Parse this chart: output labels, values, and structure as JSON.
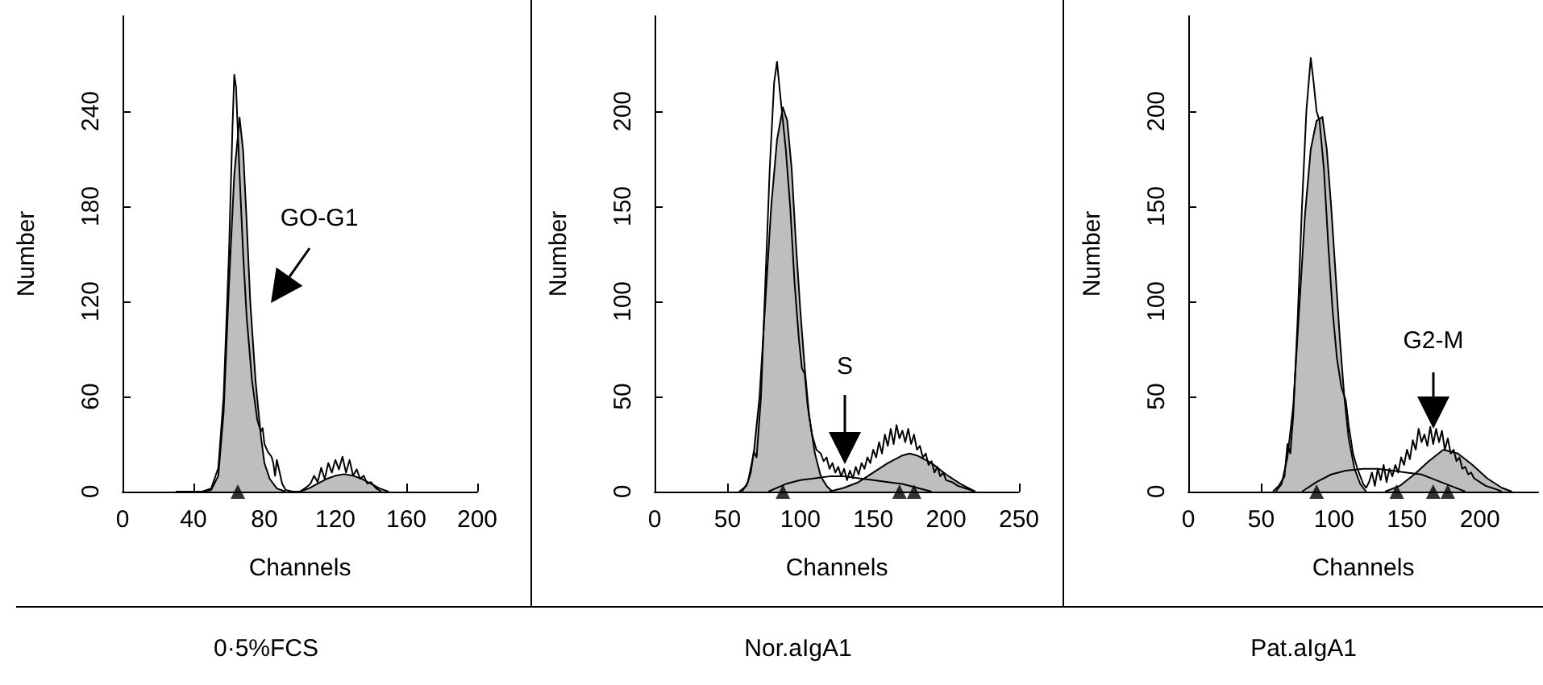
{
  "chart_data": [
    {
      "type": "line",
      "title": "0·5%FCS",
      "xlabel": "Channels",
      "ylabel": "Number",
      "xlim": [
        0,
        200
      ],
      "xticks": [
        0,
        40,
        80,
        120,
        160,
        200
      ],
      "ylim": [
        0,
        300
      ],
      "yticks": [
        0,
        60,
        120,
        180,
        240
      ],
      "series": [
        {
          "type": "area",
          "color": "#bcbec0",
          "x": [
            45,
            50,
            54,
            57,
            60,
            63,
            66,
            68,
            70,
            72,
            75,
            78,
            80,
            83,
            87,
            92
          ],
          "values": [
            0,
            1,
            10,
            50,
            130,
            200,
            236,
            215,
            170,
            120,
            70,
            35,
            18,
            8,
            2,
            0
          ]
        },
        {
          "type": "area",
          "color": "#bcbec0",
          "x": [
            100,
            105,
            110,
            115,
            120,
            125,
            130,
            135,
            140,
            145,
            150
          ],
          "values": [
            0,
            2,
            5,
            8,
            10,
            11,
            10,
            8,
            5,
            2,
            0
          ]
        },
        {
          "type": "line",
          "color": "#000000",
          "x": [
            30,
            45,
            50,
            54,
            57,
            60,
            62,
            63,
            64,
            66,
            68,
            70,
            73,
            76,
            78,
            79,
            80,
            82,
            84,
            85,
            86,
            87,
            88,
            90,
            92,
            96,
            100,
            104,
            106,
            108,
            110,
            112,
            114,
            116,
            118,
            120,
            122,
            124,
            126,
            128,
            130,
            132,
            134,
            136,
            138,
            140,
            143,
            146
          ],
          "values": [
            0,
            0,
            2,
            15,
            60,
            150,
            230,
            263,
            255,
            200,
            150,
            110,
            70,
            45,
            38,
            40,
            30,
            25,
            22,
            18,
            10,
            20,
            15,
            5,
            1,
            0,
            0,
            3,
            5,
            10,
            6,
            15,
            8,
            18,
            12,
            20,
            14,
            22,
            12,
            20,
            10,
            14,
            8,
            10,
            5,
            6,
            2,
            0
          ]
        },
        {
          "type": "scatter",
          "marker": "triangle",
          "color": "#000000",
          "x": [
            65
          ],
          "values": [
            0
          ]
        }
      ],
      "annotations": [
        "GO-G1"
      ]
    },
    {
      "type": "line",
      "title": "Nor.aIgA1",
      "xlabel": "Channels",
      "ylabel": "Number",
      "xlim": [
        0,
        250
      ],
      "xticks": [
        0,
        50,
        100,
        150,
        200,
        250
      ],
      "ylim": [
        0,
        250
      ],
      "yticks": [
        0,
        50,
        100,
        150,
        200
      ],
      "series": [
        {
          "type": "area",
          "color": "#bcbec0",
          "x": [
            60,
            64,
            68,
            72,
            76,
            80,
            84,
            88,
            91,
            94,
            97,
            100,
            103,
            106,
            110,
            114,
            118,
            122
          ],
          "values": [
            0,
            5,
            20,
            50,
            100,
            150,
            185,
            202,
            195,
            170,
            130,
            95,
            65,
            40,
            20,
            8,
            3,
            0
          ]
        },
        {
          "type": "area",
          "color": "#bcbec0",
          "x": [
            120,
            130,
            140,
            150,
            160,
            170,
            175,
            180,
            190,
            200,
            210,
            220
          ],
          "values": [
            0,
            2,
            5,
            10,
            15,
            19,
            20,
            19,
            15,
            9,
            4,
            0
          ]
        },
        {
          "type": "line",
          "color": "#000000",
          "x": [
            78,
            90,
            100,
            110,
            120,
            130,
            140,
            150,
            160,
            170,
            180,
            190
          ],
          "values": [
            0,
            4,
            6,
            7,
            8,
            8,
            7,
            6,
            5,
            4,
            2,
            0
          ]
        },
        {
          "type": "line",
          "color": "#000000",
          "x": [
            58,
            63,
            66,
            68,
            70,
            73,
            76,
            79,
            82,
            84,
            86,
            88,
            90,
            93,
            96,
            99,
            101,
            103,
            105,
            108,
            111,
            114,
            116,
            118,
            120,
            122,
            124,
            126,
            128,
            130,
            132,
            134,
            136,
            138,
            140,
            142,
            144,
            146,
            148,
            150,
            152,
            154,
            156,
            158,
            160,
            162,
            164,
            166,
            168,
            170,
            172,
            174,
            176,
            178,
            180,
            182,
            184,
            186,
            188,
            190,
            192,
            194,
            196,
            198,
            200,
            204,
            208,
            212,
            216,
            220
          ],
          "values": [
            0,
            3,
            10,
            21,
            18,
            50,
            110,
            170,
            215,
            226,
            210,
            195,
            180,
            150,
            110,
            80,
            65,
            62,
            45,
            30,
            22,
            20,
            16,
            18,
            12,
            15,
            10,
            13,
            8,
            12,
            6,
            11,
            7,
            13,
            9,
            15,
            12,
            18,
            15,
            22,
            18,
            26,
            20,
            30,
            24,
            33,
            25,
            35,
            28,
            32,
            26,
            33,
            25,
            30,
            22,
            24,
            18,
            20,
            14,
            16,
            10,
            13,
            8,
            10,
            6,
            5,
            3,
            2,
            1,
            0
          ]
        },
        {
          "type": "scatter",
          "marker": "triangle",
          "color": "#000000",
          "x": [
            88,
            168,
            178
          ],
          "values": [
            0,
            0,
            0
          ]
        }
      ],
      "annotations": [
        "S"
      ]
    },
    {
      "type": "line",
      "title": "Pat.aIgA1",
      "xlabel": "Channels",
      "ylabel": "Number",
      "xlim": [
        0,
        240
      ],
      "xticks": [
        0,
        50,
        100,
        150,
        200
      ],
      "ylim": [
        0,
        250
      ],
      "yticks": [
        0,
        50,
        100,
        150,
        200
      ],
      "series": [
        {
          "type": "area",
          "color": "#bcbec0",
          "x": [
            60,
            64,
            68,
            72,
            76,
            80,
            84,
            88,
            92,
            95,
            98,
            101,
            104,
            107,
            110,
            114,
            118,
            122
          ],
          "values": [
            0,
            4,
            18,
            45,
            95,
            145,
            180,
            195,
            197,
            180,
            150,
            115,
            80,
            50,
            28,
            12,
            4,
            0
          ]
        },
        {
          "type": "area",
          "color": "#bcbec0",
          "x": [
            135,
            145,
            155,
            165,
            175,
            185,
            195,
            205,
            215,
            222
          ],
          "values": [
            0,
            3,
            9,
            16,
            22,
            20,
            14,
            7,
            2,
            0
          ]
        },
        {
          "type": "line",
          "color": "#000000",
          "x": [
            78,
            88,
            98,
            108,
            120,
            130,
            140,
            150,
            160,
            170,
            180,
            190
          ],
          "values": [
            0,
            5,
            9,
            11,
            12,
            12,
            11,
            10,
            9,
            6,
            3,
            0
          ]
        },
        {
          "type": "line",
          "color": "#000000",
          "x": [
            58,
            62,
            66,
            68,
            70,
            72,
            75,
            78,
            81,
            84,
            86,
            88,
            90,
            93,
            96,
            99,
            102,
            105,
            108,
            110,
            113,
            116,
            118,
            120,
            122,
            124,
            126,
            128,
            130,
            132,
            134,
            136,
            138,
            140,
            142,
            144,
            146,
            148,
            150,
            152,
            154,
            156,
            158,
            160,
            162,
            164,
            166,
            168,
            170,
            172,
            174,
            176,
            178,
            180,
            182,
            184,
            186,
            188,
            190,
            192,
            194,
            196,
            200,
            204,
            208,
            212,
            215
          ],
          "values": [
            0,
            3,
            8,
            25,
            20,
            40,
            90,
            150,
            200,
            228,
            215,
            200,
            195,
            170,
            130,
            95,
            70,
            55,
            48,
            35,
            20,
            12,
            8,
            4,
            2,
            5,
            10,
            3,
            12,
            6,
            14,
            5,
            12,
            8,
            14,
            10,
            18,
            14,
            22,
            17,
            27,
            22,
            33,
            26,
            30,
            24,
            34,
            25,
            33,
            26,
            32,
            22,
            28,
            20,
            22,
            16,
            18,
            12,
            13,
            9,
            10,
            7,
            5,
            3,
            2,
            1,
            0
          ]
        },
        {
          "type": "scatter",
          "marker": "triangle",
          "color": "#000000",
          "x": [
            88,
            143,
            168,
            178
          ],
          "values": [
            0,
            0,
            0,
            0
          ]
        }
      ],
      "annotations": [
        "G2-M"
      ]
    }
  ]
}
